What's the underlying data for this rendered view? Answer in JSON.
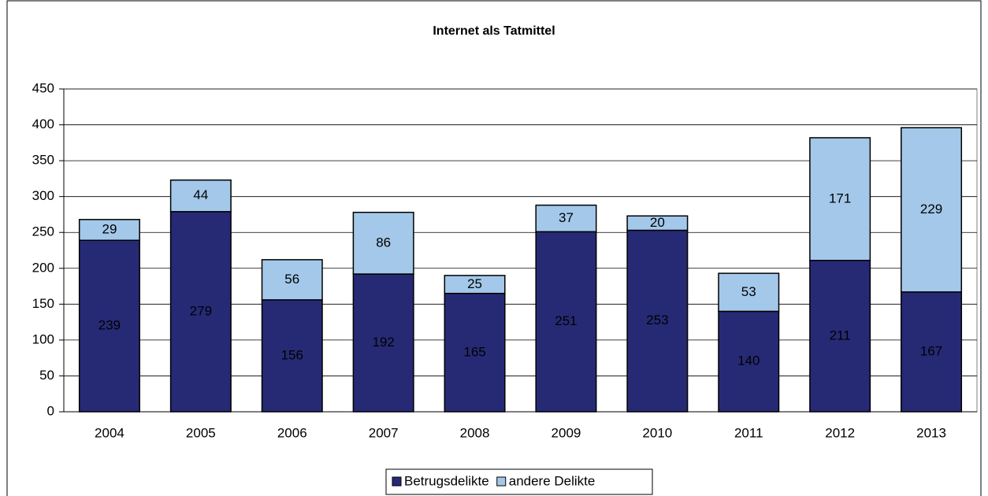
{
  "chart_data": {
    "type": "stacked_bar",
    "title": "Internet als Tatmittel",
    "categories": [
      "2004",
      "2005",
      "2006",
      "2007",
      "2008",
      "2009",
      "2010",
      "2011",
      "2012",
      "2013"
    ],
    "series": [
      {
        "name": "Betrugsdelikte",
        "color": "#262a75",
        "values": [
          239,
          279,
          156,
          192,
          165,
          251,
          253,
          140,
          211,
          167
        ]
      },
      {
        "name": "andere Delikte",
        "color": "#a3c8ea",
        "values": [
          29,
          44,
          56,
          86,
          25,
          37,
          20,
          53,
          171,
          229
        ]
      }
    ],
    "ylim": [
      0,
      450
    ],
    "yticks": [
      0,
      50,
      100,
      150,
      200,
      250,
      300,
      350,
      400,
      450
    ],
    "grid": true,
    "legend": "bottom"
  }
}
